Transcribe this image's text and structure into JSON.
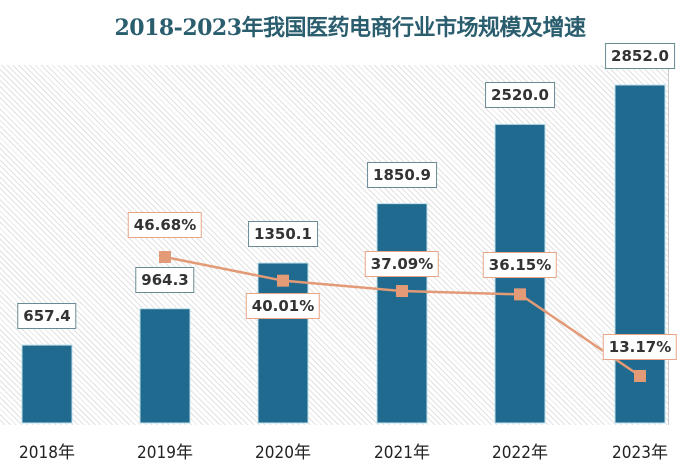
{
  "chart_data": {
    "type": "bar+line",
    "title": "2018-2023年我国医药电商行业市场规模及增速",
    "categories": [
      "2018年",
      "2019年",
      "2020年",
      "2021年",
      "2022年",
      "2023年"
    ],
    "series": [
      {
        "type": "bar",
        "values": [
          657.4,
          964.3,
          1350.1,
          1850.9,
          2520.0,
          2852.0
        ],
        "labels": [
          "657.4",
          "964.3",
          "1350.1",
          "1850.9",
          "2520.0",
          "2852.0"
        ],
        "color": "#1f6a8e"
      },
      {
        "type": "line",
        "values": [
          null,
          46.68,
          40.01,
          37.09,
          36.15,
          13.17
        ],
        "labels": [
          "",
          "46.68%",
          "40.01%",
          "37.09%",
          "36.15%",
          "13.17%"
        ],
        "color": "#e39a76"
      }
    ],
    "grid": false,
    "legend": "none"
  }
}
